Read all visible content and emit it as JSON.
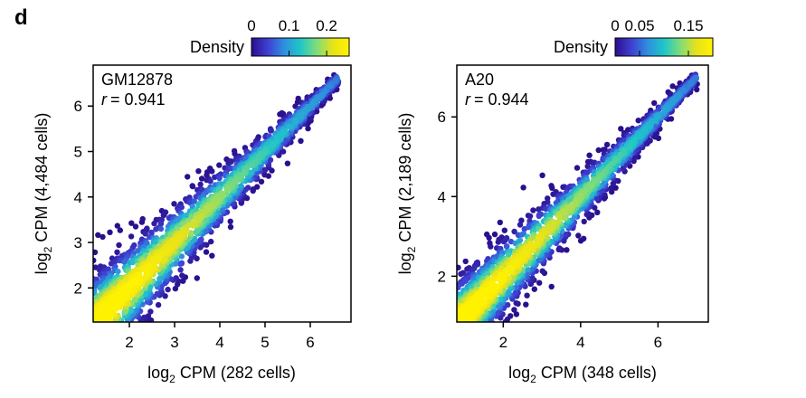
{
  "panel_label": "d",
  "chart_data": [
    {
      "type": "scatter",
      "subtype": "density-scatter",
      "sample": "GM12878",
      "r_label": "r",
      "r_value": "= 0.941",
      "xlabel": {
        "main": "log",
        "sub": "2",
        "rest": " CPM (282 cells)"
      },
      "ylabel": {
        "main": "log",
        "sub": "2",
        "rest": " CPM (4,484 cells)"
      },
      "xlim": [
        1.2,
        6.9
      ],
      "ylim": [
        1.25,
        6.9
      ],
      "xticks": [
        2,
        3,
        4,
        5,
        6
      ],
      "yticks": [
        2,
        3,
        4,
        5,
        6
      ],
      "legend": {
        "title": "Density",
        "ticks": [
          "0",
          "0.1",
          "0.2"
        ],
        "tick_values": [
          0,
          0.1,
          0.2
        ],
        "range": [
          0,
          0.26
        ]
      },
      "trend": {
        "x_start": 1.2,
        "x_end": 6.6,
        "slope": 1.0,
        "intercept": 0.0
      }
    },
    {
      "type": "scatter",
      "subtype": "density-scatter",
      "sample": "A20",
      "r_label": "r",
      "r_value": "= 0.944",
      "xlabel": {
        "main": "log",
        "sub": "2",
        "rest": " CPM (348 cells)"
      },
      "ylabel": {
        "main": "log",
        "sub": "2",
        "rest": " CPM (2,189 cells)"
      },
      "xlim": [
        0.8,
        7.3
      ],
      "ylim": [
        0.85,
        7.3
      ],
      "xticks": [
        2,
        4,
        6
      ],
      "yticks": [
        2,
        4,
        6
      ],
      "legend": {
        "title": "Density",
        "ticks": [
          "0",
          "0.05",
          "0.15"
        ],
        "tick_values": [
          0,
          0.05,
          0.15
        ],
        "range": [
          0,
          0.2
        ]
      },
      "trend": {
        "x_start": 0.8,
        "x_end": 7.0,
        "slope": 1.0,
        "intercept": 0.0
      }
    }
  ],
  "colormap": [
    "#2a0f8c",
    "#3f3fd1",
    "#2f8fe0",
    "#1fc6c8",
    "#7fdc7a",
    "#e8e21a",
    "#fff200"
  ]
}
